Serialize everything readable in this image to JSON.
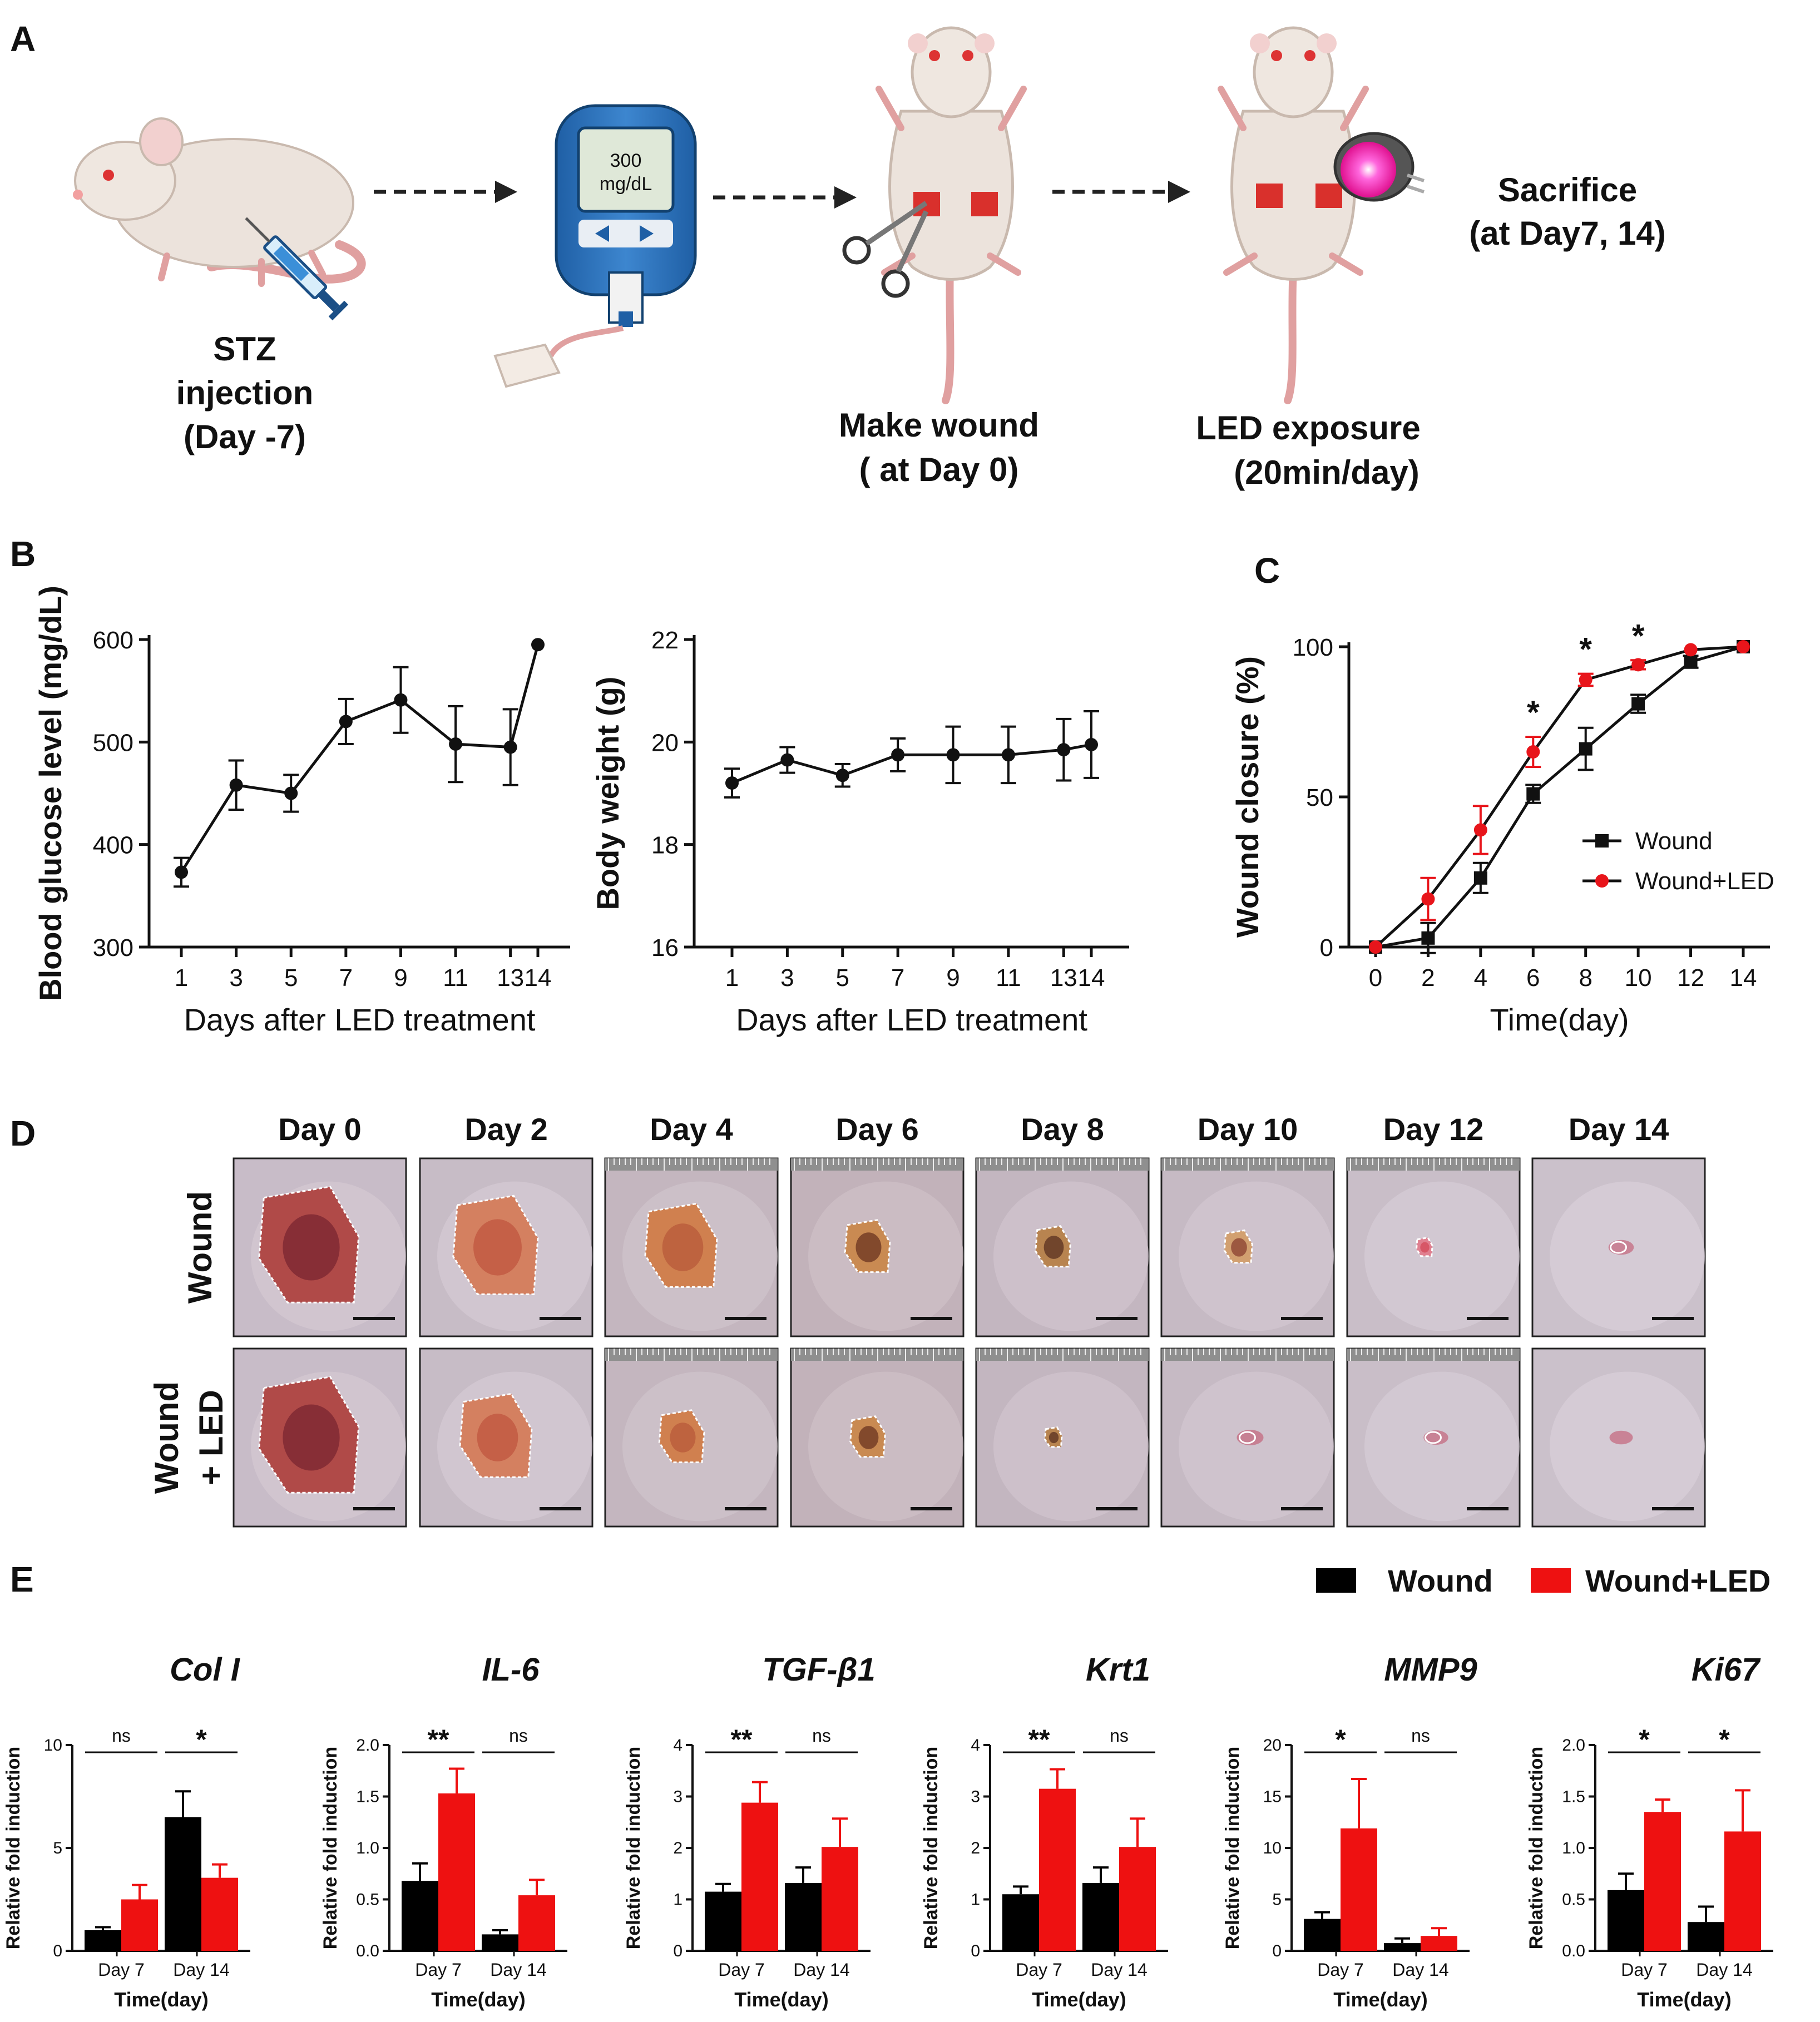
{
  "panels": {
    "a": "A",
    "b": "B",
    "c": "C",
    "d": "D",
    "e": "E"
  },
  "workflow": {
    "steps": [
      {
        "lines": [
          "STZ",
          "injection",
          "(Day -7)"
        ]
      },
      {
        "lines": [
          "Make wound",
          "( at Day 0)"
        ]
      },
      {
        "lines": [
          "LED exposure",
          "(20min/day)"
        ]
      },
      {
        "lines": [
          "Sacrifice",
          "(at Day7, 14)"
        ]
      }
    ],
    "meter_lines": [
      "300",
      "mg/dL"
    ]
  },
  "chart_data": [
    {
      "id": "glucose",
      "type": "line",
      "xlabel": "Days after LED treatment",
      "ylabel": "Blood glucose level (mg/dL)",
      "x": [
        1,
        3,
        5,
        7,
        9,
        11,
        13,
        14
      ],
      "x_ticks": [
        "1",
        "3",
        "5",
        "7",
        "9",
        "11",
        "13",
        "14"
      ],
      "ylim": [
        300,
        600
      ],
      "y_ticks": [
        300,
        400,
        500,
        600
      ],
      "series": [
        {
          "name": "Blood glucose",
          "values": [
            373,
            458,
            450,
            520,
            541,
            498,
            495,
            595
          ],
          "errors": [
            14,
            24,
            18,
            22,
            32,
            37,
            37,
            0
          ]
        }
      ]
    },
    {
      "id": "weight",
      "type": "line",
      "xlabel": "Days after LED treatment",
      "ylabel": "Body weight (g)",
      "x": [
        1,
        3,
        5,
        7,
        9,
        11,
        13,
        14
      ],
      "x_ticks": [
        "1",
        "3",
        "5",
        "7",
        "9",
        "11",
        "13",
        "14"
      ],
      "ylim": [
        16,
        22
      ],
      "y_ticks": [
        16,
        18,
        20,
        22
      ],
      "series": [
        {
          "name": "Body weight",
          "values": [
            19.2,
            19.65,
            19.35,
            19.75,
            19.75,
            19.75,
            19.85,
            19.95
          ],
          "errors": [
            0.28,
            0.25,
            0.22,
            0.32,
            0.55,
            0.55,
            0.6,
            0.65
          ]
        }
      ]
    },
    {
      "id": "closure",
      "type": "line",
      "xlabel": "Time(day)",
      "ylabel": "Wound closure (%)",
      "x": [
        0,
        2,
        4,
        6,
        8,
        10,
        12,
        14
      ],
      "x_ticks": [
        "0",
        "2",
        "4",
        "6",
        "8",
        "10",
        "12",
        "14"
      ],
      "ylim": [
        0,
        100
      ],
      "y_ticks": [
        0,
        50,
        100
      ],
      "series": [
        {
          "name": "Wound",
          "color": "#111111",
          "marker": "square",
          "values": [
            0,
            3,
            23,
            51,
            66,
            81,
            95,
            100
          ],
          "errors": [
            0,
            5,
            5,
            3,
            7,
            3,
            2,
            0
          ]
        },
        {
          "name": "Wound+LED",
          "color": "#e8151b",
          "marker": "circle",
          "values": [
            0,
            16,
            39,
            65,
            89,
            94,
            99,
            100
          ],
          "errors": [
            0,
            7,
            8,
            5,
            2,
            1.5,
            0,
            0
          ]
        }
      ],
      "annotations": [
        {
          "x": 6,
          "text": "*"
        },
        {
          "x": 8,
          "text": "*"
        },
        {
          "x": 10,
          "text": "*"
        }
      ]
    },
    {
      "id": "gene_expression",
      "type": "bar",
      "legend": [
        {
          "name": "Wound",
          "color": "#000000"
        },
        {
          "name": "Wound+LED",
          "color": "#ee1111"
        }
      ],
      "categories": [
        "Day 7",
        "Day 14"
      ],
      "xlabel": "Time(day)",
      "ylabel": "Relative fold induction",
      "genes": [
        {
          "name": "Col I",
          "ylim": [
            0,
            10
          ],
          "y_ticks": [
            "0",
            "5",
            "10"
          ],
          "wound": [
            1.0,
            6.5
          ],
          "wound_err": [
            0.15,
            1.25
          ],
          "led": [
            2.5,
            3.55
          ],
          "led_err": [
            0.7,
            0.65
          ],
          "sig": [
            "ns",
            "*"
          ]
        },
        {
          "name": "IL-6",
          "ylim": [
            0,
            2
          ],
          "y_ticks": [
            "0.0",
            "0.5",
            "1.0",
            "1.5",
            "2.0"
          ],
          "wound": [
            0.68,
            0.16
          ],
          "wound_err": [
            0.17,
            0.04
          ],
          "led": [
            1.53,
            0.54
          ],
          "led_err": [
            0.24,
            0.15
          ],
          "sig": [
            "**",
            "ns"
          ]
        },
        {
          "name": "TGF-β1",
          "ylim": [
            0,
            4
          ],
          "y_ticks": [
            "0",
            "1",
            "2",
            "3",
            "4"
          ],
          "wound": [
            1.15,
            1.32
          ],
          "wound_err": [
            0.15,
            0.3
          ],
          "led": [
            2.88,
            2.02
          ],
          "led_err": [
            0.4,
            0.55
          ],
          "sig": [
            "**",
            "ns"
          ]
        },
        {
          "name": "Krt1",
          "ylim": [
            0,
            4
          ],
          "y_ticks": [
            "0",
            "1",
            "2",
            "3",
            "4"
          ],
          "wound": [
            1.1,
            1.32
          ],
          "wound_err": [
            0.15,
            0.3
          ],
          "led": [
            3.15,
            2.02
          ],
          "led_err": [
            0.38,
            0.55
          ],
          "sig": [
            "**",
            "ns"
          ]
        },
        {
          "name": "MMP9",
          "ylim": [
            0,
            20
          ],
          "y_ticks": [
            "0",
            "5",
            "10",
            "15",
            "20"
          ],
          "wound": [
            3.1,
            0.75
          ],
          "wound_err": [
            0.65,
            0.45
          ],
          "led": [
            11.9,
            1.45
          ],
          "led_err": [
            4.8,
            0.75
          ],
          "sig": [
            "*",
            "ns"
          ]
        },
        {
          "name": "Ki67",
          "ylim": [
            0,
            2
          ],
          "y_ticks": [
            "0.0",
            "0.5",
            "1.0",
            "1.5",
            "2.0"
          ],
          "wound": [
            0.59,
            0.28
          ],
          "wound_err": [
            0.16,
            0.15
          ],
          "led": [
            1.35,
            1.16
          ],
          "led_err": [
            0.12,
            0.4
          ],
          "sig": [
            "*",
            "*"
          ]
        }
      ]
    }
  ],
  "photos": {
    "days": [
      "Day 0",
      "Day 2",
      "Day 4",
      "Day 6",
      "Day 8",
      "Day 10",
      "Day 12",
      "Day 14"
    ],
    "rows": [
      {
        "label_lines": [
          "Wound"
        ]
      },
      {
        "label_lines": [
          "Wound",
          "+ LED"
        ]
      }
    ]
  }
}
